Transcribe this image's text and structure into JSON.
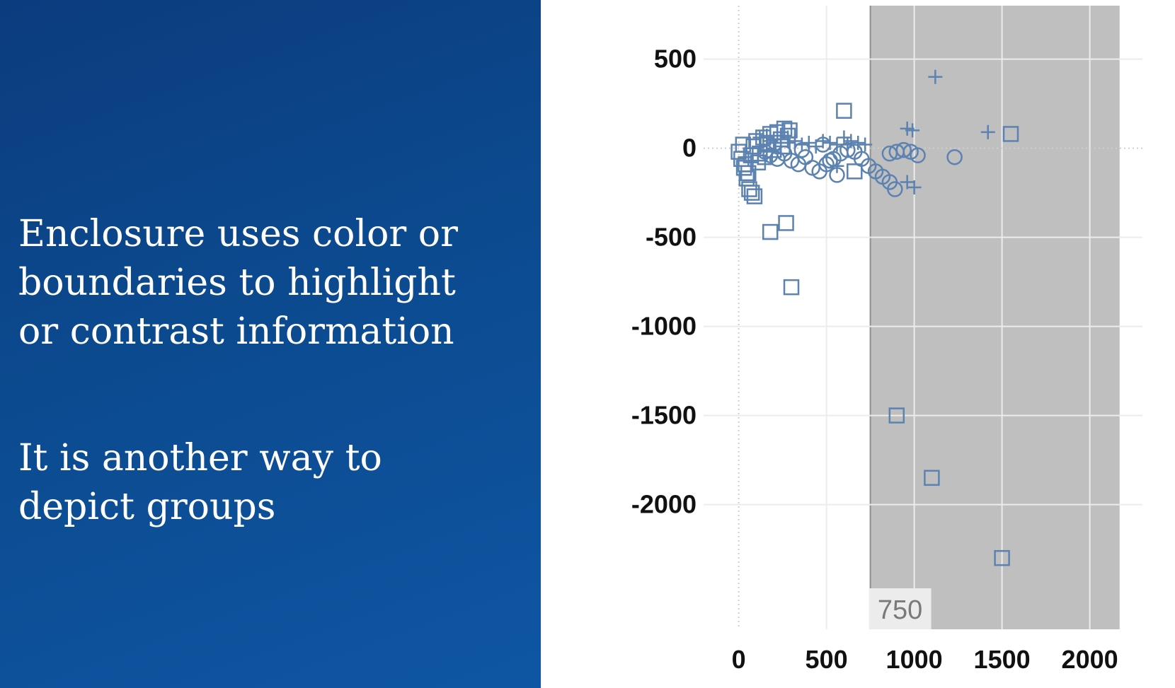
{
  "slide": {
    "text_1": "Enclosure uses color or\nboundaries  to highlight\nor contrast information",
    "text_2": "It is another way to\ndepict groups"
  },
  "colors": {
    "panel": "#0c4a8f",
    "marker": "#5b82b0",
    "enclosure": "#bfbfbf"
  },
  "chart_data": {
    "type": "scatter",
    "title": "",
    "xlabel": "",
    "ylabel": "",
    "xlim": [
      -200,
      2300
    ],
    "ylim": [
      -2700,
      800
    ],
    "x_ticks": [
      0,
      500,
      1000,
      1500,
      2000
    ],
    "y_ticks": [
      500,
      0,
      -500,
      -1000,
      -1500,
      -2000
    ],
    "grid": true,
    "legend": "none",
    "enclosure": {
      "x_start": 750,
      "x_end": 2170,
      "label": "750"
    },
    "series": [
      {
        "marker": "square",
        "points": [
          [
            0,
            -20
          ],
          [
            15,
            -60
          ],
          [
            25,
            20
          ],
          [
            40,
            -90
          ],
          [
            55,
            -140
          ],
          [
            70,
            -40
          ],
          [
            85,
            10
          ],
          [
            100,
            40
          ],
          [
            120,
            -30
          ],
          [
            140,
            60
          ],
          [
            160,
            20
          ],
          [
            180,
            80
          ],
          [
            200,
            30
          ],
          [
            220,
            90
          ],
          [
            240,
            50
          ],
          [
            260,
            110
          ],
          [
            280,
            70
          ],
          [
            45,
            -170
          ],
          [
            60,
            -230
          ],
          [
            75,
            -250
          ],
          [
            90,
            -270
          ],
          [
            30,
            -110
          ],
          [
            110,
            -80
          ],
          [
            150,
            -50
          ],
          [
            200,
            -10
          ],
          [
            250,
            10
          ],
          [
            290,
            100
          ],
          [
            600,
            210
          ],
          [
            660,
            -130
          ],
          [
            270,
            -420
          ],
          [
            180,
            -470
          ],
          [
            300,
            -780
          ],
          [
            1550,
            80
          ],
          [
            900,
            -1500
          ],
          [
            1100,
            -1850
          ],
          [
            1500,
            -2300
          ]
        ]
      },
      {
        "marker": "circle",
        "points": [
          [
            150,
            -20
          ],
          [
            180,
            -40
          ],
          [
            220,
            -60
          ],
          [
            260,
            -30
          ],
          [
            300,
            -70
          ],
          [
            340,
            -90
          ],
          [
            380,
            -50
          ],
          [
            420,
            -110
          ],
          [
            460,
            -130
          ],
          [
            500,
            -90
          ],
          [
            540,
            -60
          ],
          [
            580,
            -30
          ],
          [
            620,
            -10
          ],
          [
            660,
            -20
          ],
          [
            700,
            -60
          ],
          [
            740,
            -100
          ],
          [
            780,
            -130
          ],
          [
            820,
            -160
          ],
          [
            860,
            -190
          ],
          [
            890,
            -230
          ],
          [
            860,
            -30
          ],
          [
            900,
            -20
          ],
          [
            940,
            -10
          ],
          [
            980,
            -20
          ],
          [
            1020,
            -40
          ],
          [
            1230,
            -50
          ],
          [
            560,
            -150
          ],
          [
            520,
            -70
          ],
          [
            480,
            20
          ],
          [
            360,
            -10
          ]
        ]
      },
      {
        "marker": "plus",
        "points": [
          [
            120,
            60
          ],
          [
            160,
            70
          ],
          [
            200,
            50
          ],
          [
            240,
            30
          ],
          [
            280,
            60
          ],
          [
            320,
            40
          ],
          [
            360,
            20
          ],
          [
            400,
            30
          ],
          [
            440,
            10
          ],
          [
            480,
            40
          ],
          [
            520,
            30
          ],
          [
            560,
            20
          ],
          [
            600,
            60
          ],
          [
            640,
            40
          ],
          [
            680,
            30
          ],
          [
            720,
            20
          ],
          [
            560,
            -100
          ],
          [
            620,
            20
          ],
          [
            960,
            110
          ],
          [
            990,
            100
          ],
          [
            1120,
            400
          ],
          [
            1420,
            90
          ],
          [
            960,
            -190
          ],
          [
            1000,
            -220
          ]
        ]
      }
    ]
  }
}
